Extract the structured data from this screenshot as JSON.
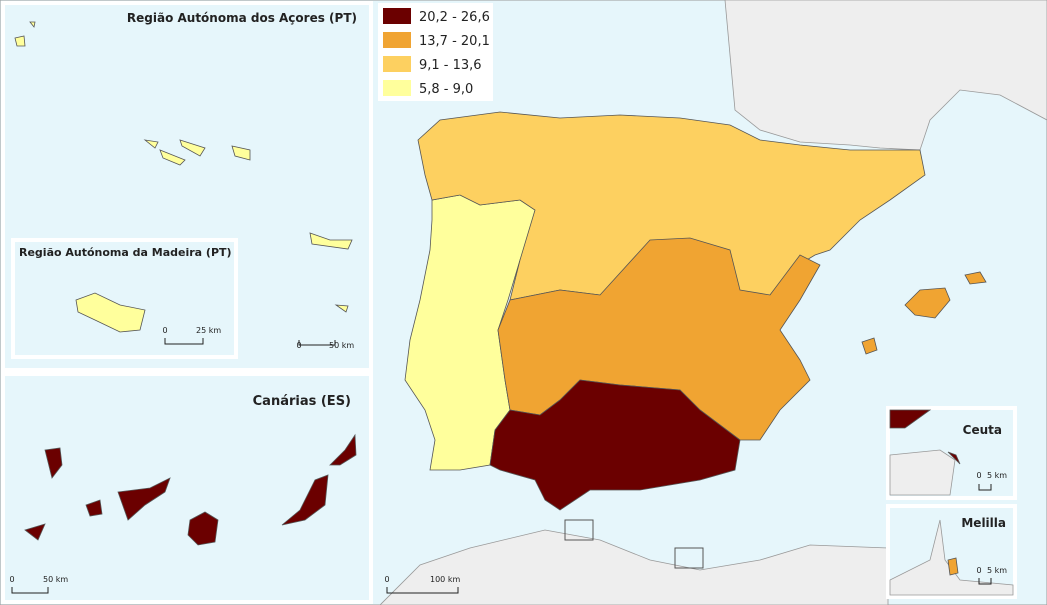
{
  "legend": {
    "items": [
      {
        "label": "20,2 - 26,6",
        "color": "#6b0000"
      },
      {
        "label": "13,7 - 20,1",
        "color": "#f0a432"
      },
      {
        "label": "9,1 - 13,6",
        "color": "#fdd060"
      },
      {
        "label": "5,8 - 9,0",
        "color": "#ffff9c"
      }
    ]
  },
  "insets": {
    "azores": {
      "title": "Região Autónoma dos Açores (PT)",
      "scale": [
        "0",
        "50 km"
      ]
    },
    "madeira": {
      "title": "Região Autónoma da Madeira (PT)",
      "scale": [
        "0",
        "25 km"
      ]
    },
    "canarias": {
      "title": "Canárias (ES)",
      "scale": [
        "0",
        "50 km"
      ]
    },
    "ceuta": {
      "title": "Ceuta",
      "scale": [
        "0",
        "5 km"
      ]
    },
    "melilla": {
      "title": "Melilla",
      "scale": [
        "0",
        "5 km"
      ]
    }
  },
  "main_map": {
    "scale": [
      "0",
      "100 km"
    ]
  }
}
